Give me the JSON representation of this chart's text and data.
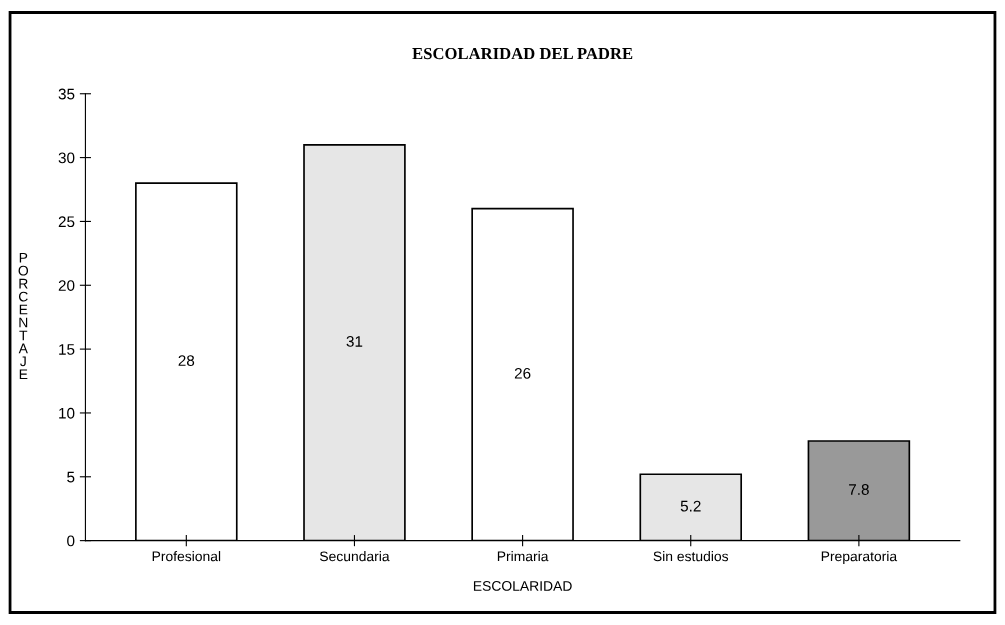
{
  "chart_data": {
    "type": "bar",
    "title": "ESCOLARIDAD DEL PADRE",
    "xlabel": "ESCOLARIDAD",
    "ylabel": "PORCENTAJE",
    "categories": [
      "Profesional",
      "Secundaria",
      "Primaria",
      "Sin estudios",
      "Preparatoria"
    ],
    "values": [
      28,
      31,
      26,
      5.2,
      7.8
    ],
    "colors": [
      "#ffffff",
      "#e6e6e6",
      "#ffffff",
      "#e6e6e6",
      "#999999"
    ],
    "ylim": [
      0,
      35
    ],
    "yticks": [
      0,
      5,
      10,
      15,
      20,
      25,
      30,
      35
    ],
    "grid": false,
    "data_labels": true
  }
}
